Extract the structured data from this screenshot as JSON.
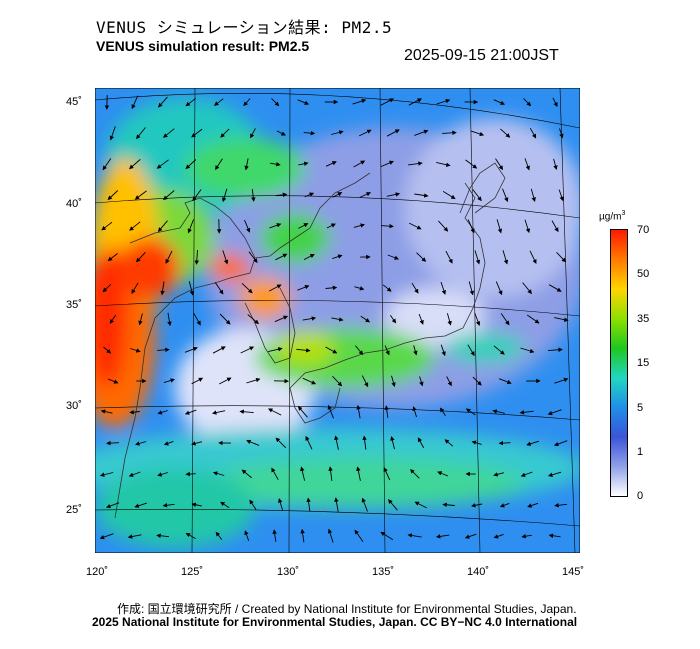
{
  "title_ja": "VENUS シミュレーション結果: PM2.5",
  "title_en": "VENUS simulation result: PM2.5",
  "timestamp": "2025-09-15 21:00JST",
  "axes": {
    "lat_ticks": [
      "45˚",
      "40˚",
      "35˚",
      "30˚",
      "25˚"
    ],
    "lon_ticks": [
      "120˚",
      "125˚",
      "130˚",
      "135˚",
      "140˚",
      "145˚"
    ]
  },
  "colorbar": {
    "unit_base": "µg/m",
    "unit_sup": "3",
    "ticks": [
      "70",
      "50",
      "35",
      "15",
      "5",
      "1",
      "0"
    ],
    "colors": [
      "#ff1a00",
      "#ff7a00",
      "#ffd400",
      "#8ee000",
      "#1ec81e",
      "#22d6c0",
      "#1f8fe8",
      "#3a55d8",
      "#8fa0e8",
      "#ffffff"
    ]
  },
  "credits": {
    "line1": "作成: 国立環境研究所 / Created by National Institute for Environmental Studies, Japan.",
    "line2": "2025 National Institute for Environmental Studies, Japan. CC BY−NC 4.0 International"
  }
}
